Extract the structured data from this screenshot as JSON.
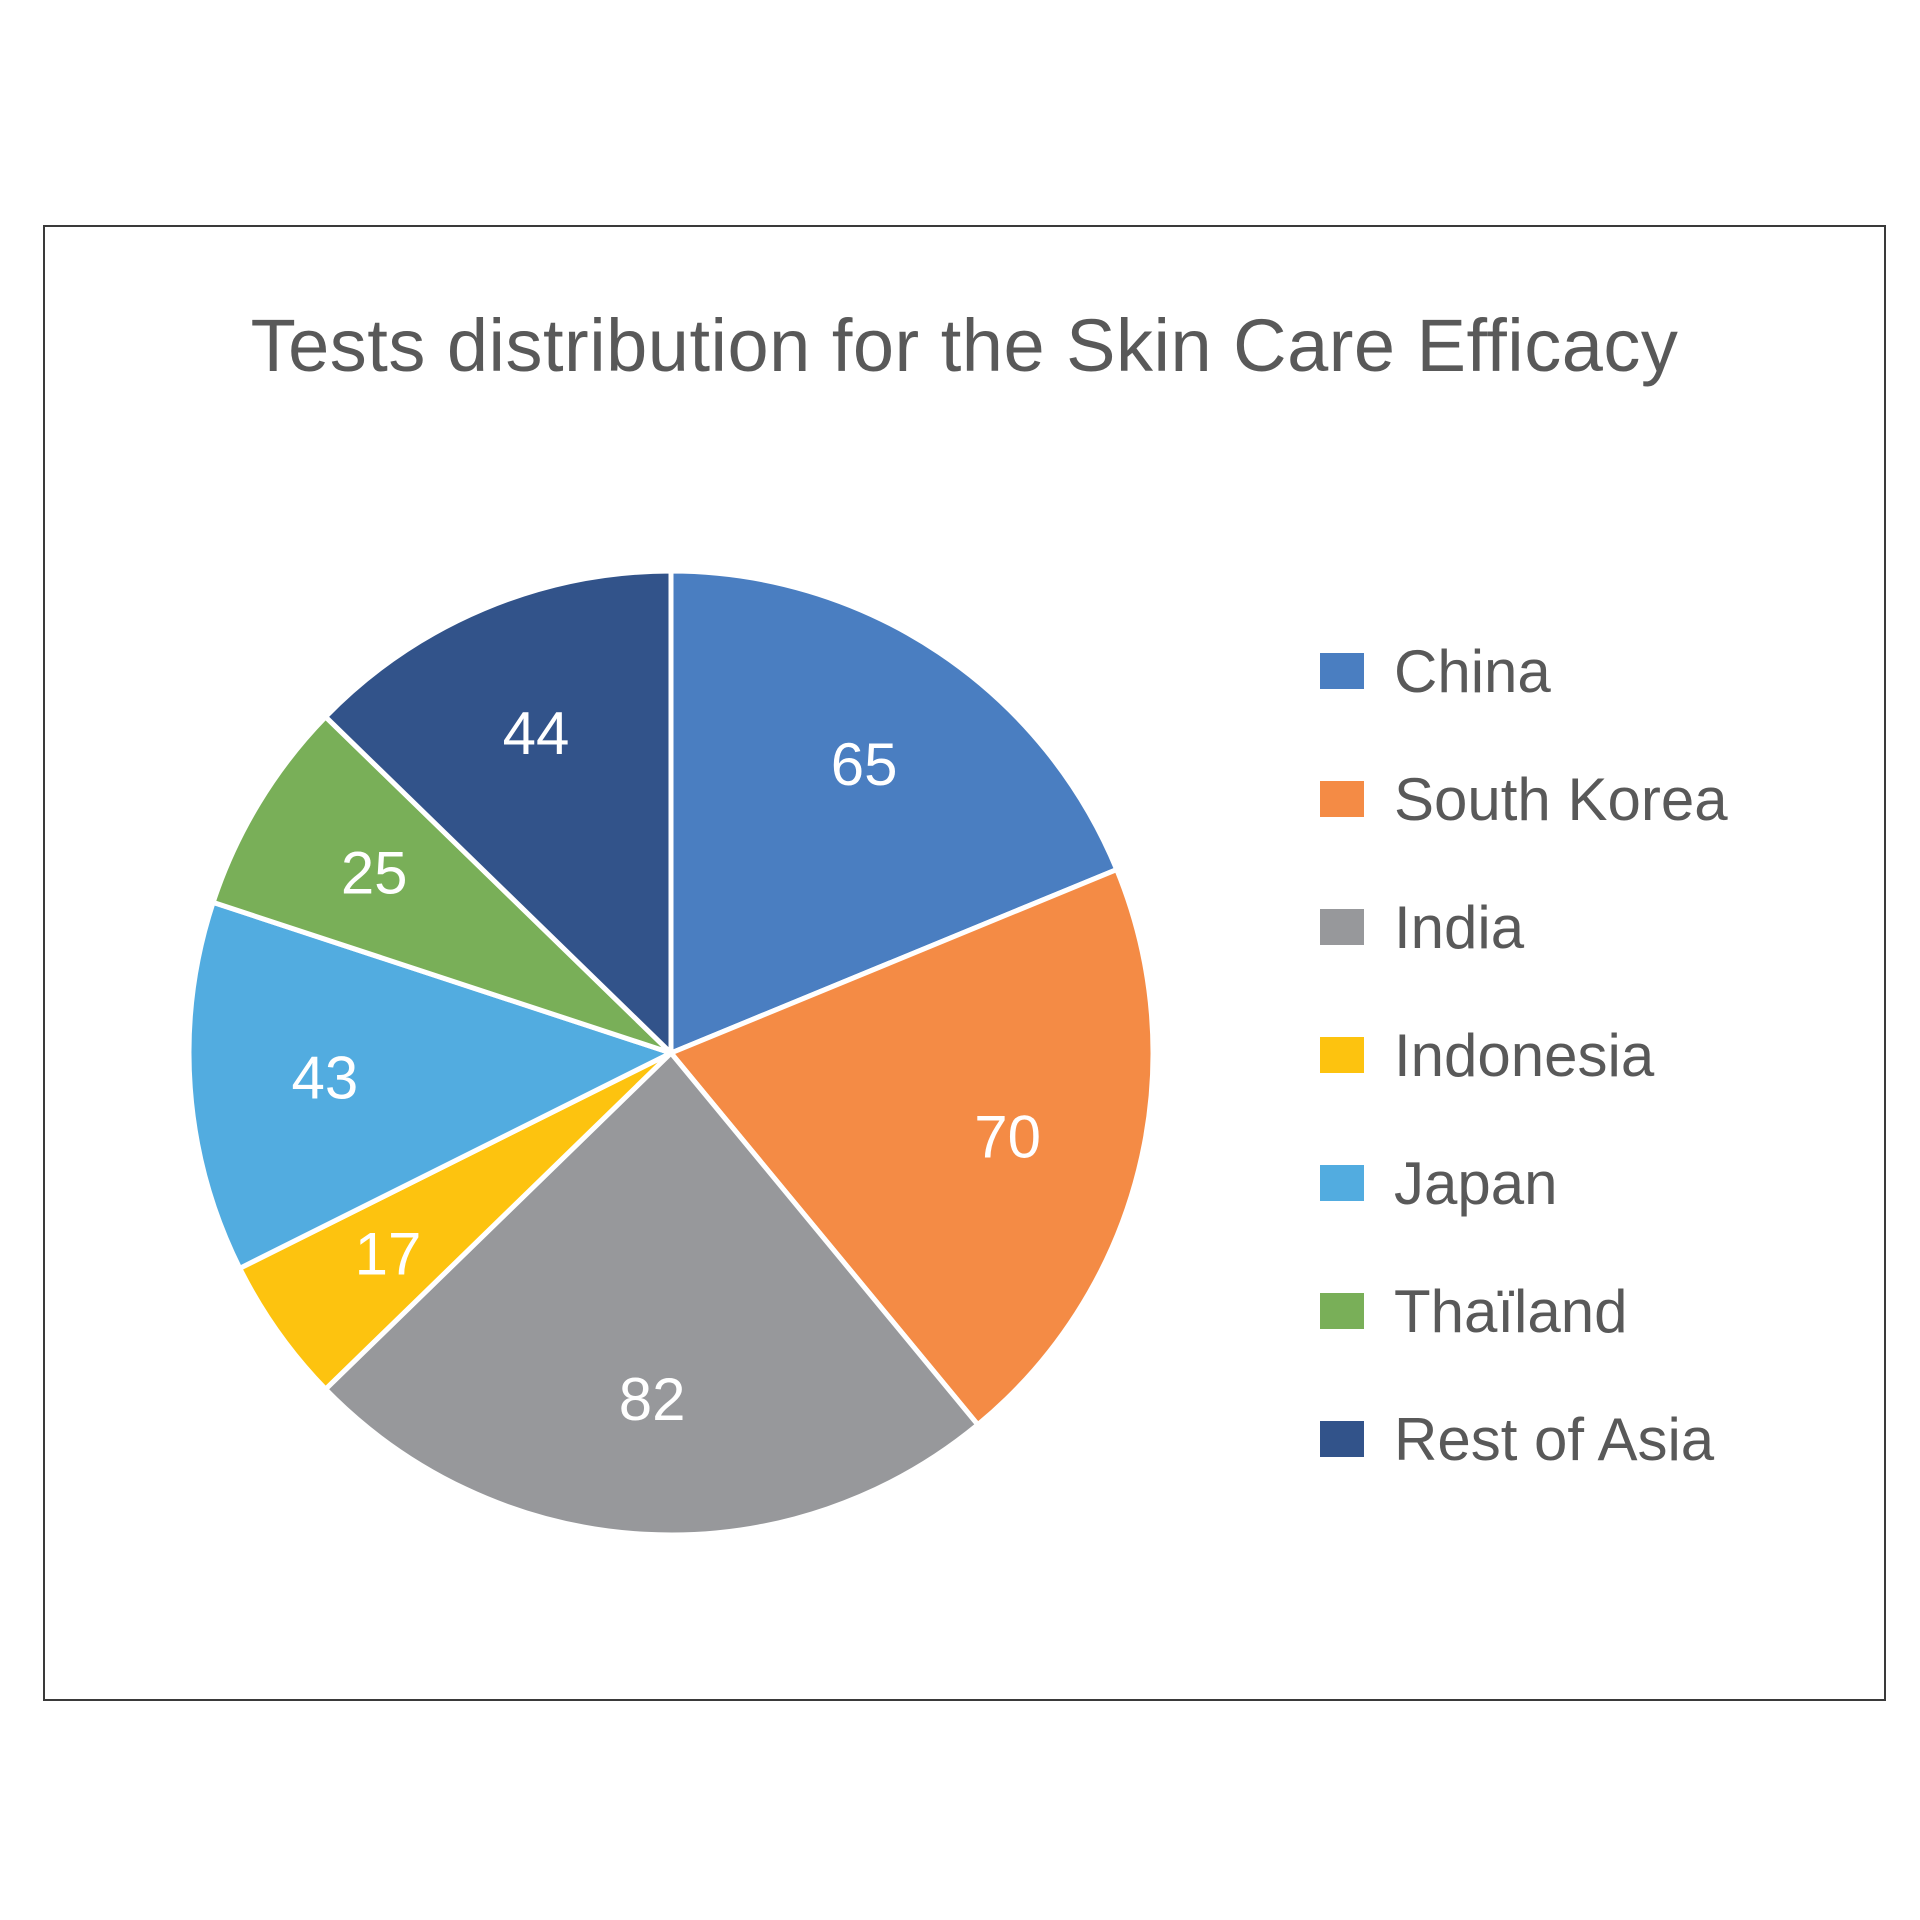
{
  "chart_data": {
    "type": "pie",
    "title": "Tests distribution for the Skin Care Efficacy",
    "categories": [
      "China",
      "South Korea",
      "India",
      "Indonesia",
      "Japan",
      "Thaïland",
      "Rest of Asia"
    ],
    "values": [
      65,
      70,
      82,
      17,
      43,
      25,
      44
    ],
    "colors": [
      "#4A7EC1",
      "#F48B45",
      "#97989B",
      "#FDC30F",
      "#52ACE0",
      "#79AF58",
      "#32538A"
    ],
    "start_angle_deg": 0,
    "direction": "clockwise",
    "data_labels": true,
    "legend_position": "right"
  }
}
